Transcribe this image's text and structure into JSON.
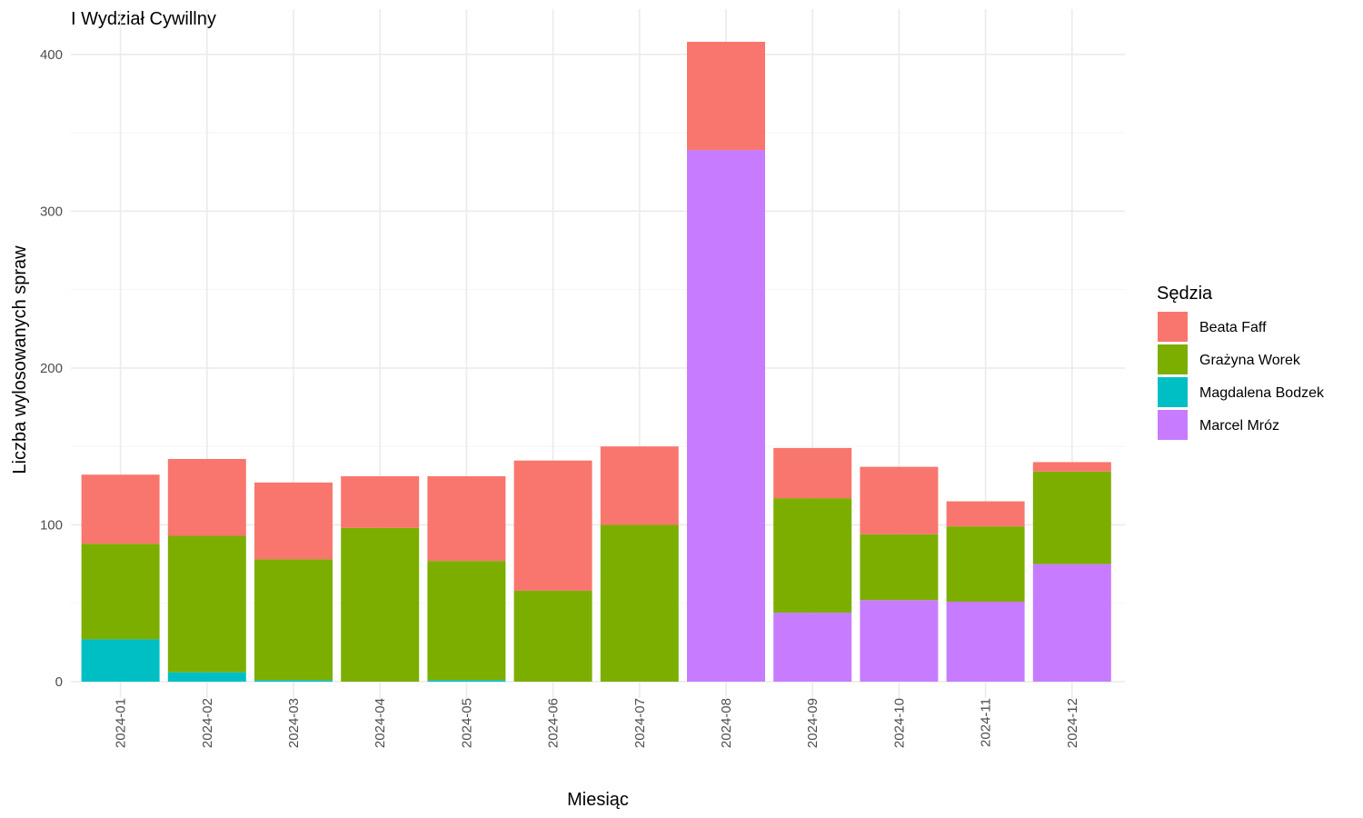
{
  "chart_data": {
    "type": "bar",
    "stacked": true,
    "title": "I Wydział Cywillny",
    "xlabel": "Miesiąc",
    "ylabel": "Liczba wylosowanych spraw",
    "ylim": [
      0,
      410
    ],
    "yticks": [
      0,
      100,
      200,
      300,
      400
    ],
    "grid": true,
    "legend_title": "Sędzia",
    "legend_position": "right",
    "categories": [
      "2024-01",
      "2024-02",
      "2024-03",
      "2024-04",
      "2024-05",
      "2024-06",
      "2024-07",
      "2024-08",
      "2024-09",
      "2024-10",
      "2024-11",
      "2024-12"
    ],
    "series": [
      {
        "name": "Beata Faff",
        "color": "#F8766D",
        "values": [
          44,
          49,
          49,
          33,
          54,
          83,
          50,
          69,
          32,
          43,
          16,
          6
        ]
      },
      {
        "name": "Grażyna Worek",
        "color": "#7CAE00",
        "values": [
          61,
          87,
          77,
          98,
          76,
          58,
          100,
          0,
          73,
          42,
          48,
          59
        ]
      },
      {
        "name": "Magdalena Bodzek",
        "color": "#00BFC4",
        "values": [
          27,
          6,
          1,
          0,
          1,
          0,
          0,
          0,
          0,
          0,
          0,
          0
        ]
      },
      {
        "name": "Marcel Mróz",
        "color": "#C77CFF",
        "values": [
          0,
          0,
          0,
          0,
          0,
          0,
          0,
          339,
          44,
          52,
          51,
          75
        ]
      }
    ]
  }
}
